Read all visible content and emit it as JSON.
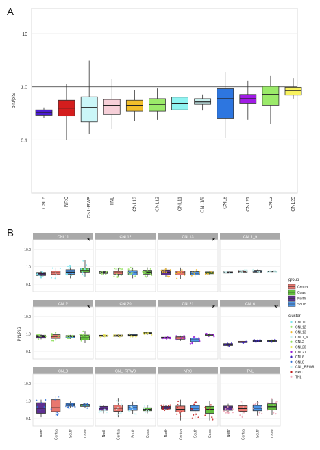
{
  "panel_labels": {
    "a": "A",
    "b": "B"
  },
  "chart_data": [
    {
      "type": "box",
      "panel": "A",
      "ylabel": "piN/piS",
      "yscale": "log",
      "ylim": [
        0.01,
        30
      ],
      "yticks": [
        {
          "v": 0.1,
          "label": "0.1"
        },
        {
          "v": 1,
          "label": "1.0"
        },
        {
          "v": 10,
          "label": "10"
        }
      ],
      "reference_line": 1.0,
      "boxes": [
        {
          "name": "CNL6",
          "color": "#4b1dd0",
          "low": 0.26,
          "q1": 0.29,
          "median": 0.33,
          "q3": 0.37,
          "high": 0.41
        },
        {
          "name": "NRC",
          "color": "#d41d1d",
          "low": 0.1,
          "q1": 0.28,
          "median": 0.4,
          "q3": 0.56,
          "high": 1.12
        },
        {
          "name": "CNL-RW8",
          "color": "#cbf6f8",
          "low": 0.13,
          "q1": 0.22,
          "median": 0.41,
          "q3": 0.65,
          "high": 3.1
        },
        {
          "name": "TNL",
          "color": "#f6cfd8",
          "low": 0.16,
          "q1": 0.3,
          "median": 0.44,
          "q3": 0.58,
          "high": 1.4
        },
        {
          "name": "CNL13",
          "color": "#f2bf2b",
          "low": 0.23,
          "q1": 0.35,
          "median": 0.44,
          "q3": 0.56,
          "high": 0.86
        },
        {
          "name": "CNL12",
          "color": "#9bea6a",
          "low": 0.24,
          "q1": 0.35,
          "median": 0.46,
          "q3": 0.6,
          "high": 0.93
        },
        {
          "name": "CNL11",
          "color": "#8ff3f1",
          "low": 0.17,
          "q1": 0.37,
          "median": 0.48,
          "q3": 0.64,
          "high": 1.03
        },
        {
          "name": "CNL1/9",
          "color": "#c8f0ee",
          "low": 0.36,
          "q1": 0.47,
          "median": 0.52,
          "q3": 0.6,
          "high": 0.72
        },
        {
          "name": "CNL8",
          "color": "#2d76e0",
          "low": 0.11,
          "q1": 0.25,
          "median": 0.6,
          "q3": 0.92,
          "high": 1.9
        },
        {
          "name": "CNL21",
          "color": "#a11be6",
          "low": 0.24,
          "q1": 0.48,
          "median": 0.6,
          "q3": 0.72,
          "high": 1.3
        },
        {
          "name": "CNL2",
          "color": "#9bea6a",
          "low": 0.2,
          "q1": 0.44,
          "median": 0.72,
          "q3": 1.02,
          "high": 1.6
        },
        {
          "name": "CNL20",
          "color": "#f8f25f",
          "low": 0.6,
          "q1": 0.7,
          "median": 0.85,
          "q3": 0.98,
          "high": 1.45
        }
      ]
    },
    {
      "type": "box",
      "panel": "B",
      "ylabel": "PiN/PiS",
      "yscale": "log",
      "yticks": [
        {
          "v": 0.1,
          "label": "0.1"
        },
        {
          "v": 1,
          "label": "1.0"
        },
        {
          "v": 10,
          "label": "10.0"
        }
      ],
      "categories": [
        "North",
        "Central",
        "South",
        "Coast"
      ],
      "group_colors": {
        "North": "#5e2f91",
        "Central": "#e8776f",
        "South": "#4f96e8",
        "Coast": "#63bd3e"
      },
      "facets": [
        {
          "title": "CNL11",
          "star": true,
          "pointColor": "#7ee8f0",
          "boxes": [
            {
              "group": "North",
              "low": 0.22,
              "q1": 0.32,
              "median": 0.4,
              "q3": 0.48,
              "high": 0.62
            },
            {
              "group": "Central",
              "low": 0.18,
              "q1": 0.36,
              "median": 0.46,
              "q3": 0.58,
              "high": 0.9
            },
            {
              "group": "South",
              "low": 0.22,
              "q1": 0.38,
              "median": 0.5,
              "q3": 0.68,
              "high": 1.2
            },
            {
              "group": "Coast",
              "low": 0.28,
              "q1": 0.5,
              "median": 0.62,
              "q3": 0.82,
              "high": 2.5
            }
          ]
        },
        {
          "title": "CNL12",
          "star": false,
          "pointColor": "#9be46a",
          "boxes": [
            {
              "group": "North",
              "low": 0.35,
              "q1": 0.42,
              "median": 0.48,
              "q3": 0.54,
              "high": 0.6
            },
            {
              "group": "Central",
              "low": 0.25,
              "q1": 0.38,
              "median": 0.46,
              "q3": 0.56,
              "high": 0.85
            },
            {
              "group": "South",
              "low": 0.22,
              "q1": 0.34,
              "median": 0.46,
              "q3": 0.62,
              "high": 0.9
            },
            {
              "group": "Coast",
              "low": 0.25,
              "q1": 0.38,
              "median": 0.5,
              "q3": 0.64,
              "high": 0.92
            }
          ]
        },
        {
          "title": "CNL13",
          "star": true,
          "pointColor": "#f0b92b",
          "boxes": [
            {
              "group": "North",
              "low": 0.26,
              "q1": 0.34,
              "median": 0.48,
              "q3": 0.66,
              "high": 0.82
            },
            {
              "group": "Central",
              "low": 0.2,
              "q1": 0.34,
              "median": 0.46,
              "q3": 0.58,
              "high": 0.9
            },
            {
              "group": "South",
              "low": 0.28,
              "q1": 0.35,
              "median": 0.44,
              "q3": 0.54,
              "high": 0.7
            },
            {
              "group": "Coast",
              "low": 0.36,
              "q1": 0.4,
              "median": 0.46,
              "q3": 0.52,
              "high": 0.6
            }
          ]
        },
        {
          "title": "CNL1_9",
          "star": false,
          "pointColor": "#c8f0ee",
          "boxes": [
            {
              "group": "North",
              "low": 0.42,
              "q1": 0.44,
              "median": 0.48,
              "q3": 0.52,
              "high": 0.54
            },
            {
              "group": "Central",
              "low": 0.46,
              "q1": 0.5,
              "median": 0.56,
              "q3": 0.62,
              "high": 0.66
            },
            {
              "group": "South",
              "low": 0.44,
              "q1": 0.5,
              "median": 0.56,
              "q3": 0.64,
              "high": 0.7
            },
            {
              "group": "Coast",
              "low": 0.5,
              "q1": 0.53,
              "median": 0.56,
              "q3": 0.58,
              "high": 0.6
            }
          ]
        },
        {
          "title": "CNL2",
          "star": true,
          "pointColor": "#8fdf5e",
          "boxes": [
            {
              "group": "North",
              "low": 0.5,
              "q1": 0.58,
              "median": 0.7,
              "q3": 0.86,
              "high": 0.95
            },
            {
              "group": "Central",
              "low": 0.4,
              "q1": 0.56,
              "median": 0.74,
              "q3": 0.92,
              "high": 1.3
            },
            {
              "group": "South",
              "low": 0.52,
              "q1": 0.6,
              "median": 0.72,
              "q3": 0.82,
              "high": 0.9
            },
            {
              "group": "Coast",
              "low": 0.3,
              "q1": 0.45,
              "median": 0.6,
              "q3": 0.88,
              "high": 1.5
            }
          ]
        },
        {
          "title": "CNL20",
          "star": false,
          "pointColor": "#ece85a",
          "boxes": [
            {
              "group": "North",
              "low": 0.68,
              "q1": 0.74,
              "median": 0.8,
              "q3": 0.86,
              "high": 0.92
            },
            {
              "group": "Central",
              "low": 0.68,
              "q1": 0.74,
              "median": 0.8,
              "q3": 0.88,
              "high": 0.96
            },
            {
              "group": "South",
              "low": 0.66,
              "q1": 0.76,
              "median": 0.84,
              "q3": 0.94,
              "high": 1.02
            },
            {
              "group": "Coast",
              "low": 0.9,
              "q1": 1.0,
              "median": 1.1,
              "q3": 1.22,
              "high": 1.32
            }
          ]
        },
        {
          "title": "CNL21",
          "star": true,
          "pointColor": "#9a1ed8",
          "boxes": [
            {
              "group": "North",
              "low": 0.52,
              "q1": 0.56,
              "median": 0.62,
              "q3": 0.66,
              "high": 0.7
            },
            {
              "group": "Central",
              "low": 0.4,
              "q1": 0.5,
              "median": 0.6,
              "q3": 0.7,
              "high": 0.82
            },
            {
              "group": "South",
              "low": 0.28,
              "q1": 0.36,
              "median": 0.46,
              "q3": 0.58,
              "high": 0.72
            },
            {
              "group": "Coast",
              "low": 0.7,
              "q1": 0.8,
              "median": 0.9,
              "q3": 1.0,
              "high": 1.1
            }
          ]
        },
        {
          "title": "CNL6",
          "star": true,
          "pointColor": "#3a1fb8",
          "boxes": [
            {
              "group": "North",
              "low": 0.2,
              "q1": 0.22,
              "median": 0.25,
              "q3": 0.28,
              "high": 0.3
            },
            {
              "group": "Central",
              "low": 0.3,
              "q1": 0.32,
              "median": 0.34,
              "q3": 0.38,
              "high": 0.4
            },
            {
              "group": "South",
              "low": 0.34,
              "q1": 0.37,
              "median": 0.4,
              "q3": 0.44,
              "high": 0.48
            },
            {
              "group": "Coast",
              "low": 0.32,
              "q1": 0.36,
              "median": 0.4,
              "q3": 0.44,
              "high": 0.48
            }
          ]
        },
        {
          "title": "CNL8",
          "star": false,
          "pointColor": "#2e6fd6",
          "boxes": [
            {
              "group": "North",
              "low": 0.12,
              "q1": 0.2,
              "median": 0.4,
              "q3": 0.8,
              "high": 1.2
            },
            {
              "group": "Central",
              "low": 0.14,
              "q1": 0.25,
              "median": 0.42,
              "q3": 1.2,
              "high": 2.0
            },
            {
              "group": "South",
              "low": 0.4,
              "q1": 0.52,
              "median": 0.62,
              "q3": 0.74,
              "high": 0.95
            },
            {
              "group": "Coast",
              "low": 0.4,
              "q1": 0.5,
              "median": 0.62,
              "q3": 0.64,
              "high": 0.78
            }
          ]
        },
        {
          "title": "CNL_RPW8",
          "star": false,
          "pointColor": "#c8f4f6",
          "boxes": [
            {
              "group": "North",
              "low": 0.2,
              "q1": 0.3,
              "median": 0.4,
              "q3": 0.5,
              "high": 0.6
            },
            {
              "group": "Central",
              "low": 0.12,
              "q1": 0.26,
              "median": 0.4,
              "q3": 0.58,
              "high": 1.5
            },
            {
              "group": "South",
              "low": 0.18,
              "q1": 0.3,
              "median": 0.42,
              "q3": 0.56,
              "high": 0.9
            },
            {
              "group": "Coast",
              "low": 0.2,
              "q1": 0.28,
              "median": 0.34,
              "q3": 0.42,
              "high": 0.6
            }
          ]
        },
        {
          "title": "NRC",
          "star": false,
          "pointColor": "#c21a1a",
          "boxes": [
            {
              "group": "North",
              "low": 0.3,
              "q1": 0.36,
              "median": 0.42,
              "q3": 0.5,
              "high": 0.6
            },
            {
              "group": "Central",
              "low": 0.08,
              "q1": 0.24,
              "median": 0.34,
              "q3": 0.52,
              "high": 1.2
            },
            {
              "group": "South",
              "low": 0.1,
              "q1": 0.28,
              "median": 0.4,
              "q3": 0.56,
              "high": 1.1
            },
            {
              "group": "Coast",
              "low": 0.08,
              "q1": 0.2,
              "median": 0.34,
              "q3": 0.5,
              "high": 1.0
            }
          ]
        },
        {
          "title": "TNL",
          "star": false,
          "pointColor": "#f0a8b8",
          "boxes": [
            {
              "group": "North",
              "low": 0.2,
              "q1": 0.3,
              "median": 0.42,
              "q3": 0.52,
              "high": 0.7
            },
            {
              "group": "Central",
              "low": 0.12,
              "q1": 0.26,
              "median": 0.38,
              "q3": 0.54,
              "high": 1.0
            },
            {
              "group": "South",
              "low": 0.14,
              "q1": 0.28,
              "median": 0.4,
              "q3": 0.56,
              "high": 1.0
            },
            {
              "group": "Coast",
              "low": 0.16,
              "q1": 0.32,
              "median": 0.48,
              "q3": 0.7,
              "high": 1.4
            }
          ]
        }
      ]
    }
  ],
  "legend": {
    "group_title": "group",
    "groups": [
      {
        "label": "Central",
        "color": "#e8776f"
      },
      {
        "label": "Coast",
        "color": "#63bd3e"
      },
      {
        "label": "North",
        "color": "#5e2f91"
      },
      {
        "label": "South",
        "color": "#4f96e8"
      }
    ],
    "cluster_title": "cluster",
    "clusters": [
      {
        "label": "CNL11",
        "color": "#7ee8f0"
      },
      {
        "label": "CNL12",
        "color": "#9be46a"
      },
      {
        "label": "CNL13",
        "color": "#f0b92b"
      },
      {
        "label": "CNL1_9",
        "color": "#c8f0ee"
      },
      {
        "label": "CNL2",
        "color": "#8fdf5e"
      },
      {
        "label": "CNL20",
        "color": "#ece85a"
      },
      {
        "label": "CNL21",
        "color": "#9a1ed8"
      },
      {
        "label": "CNL6",
        "color": "#3a1fb8"
      },
      {
        "label": "CNL8",
        "color": "#2e6fd6"
      },
      {
        "label": "CNL_RPW8",
        "color": "#c8f4f6"
      },
      {
        "label": "NRC",
        "color": "#c21a1a"
      },
      {
        "label": "TNL",
        "color": "#f0a8b8"
      }
    ]
  }
}
